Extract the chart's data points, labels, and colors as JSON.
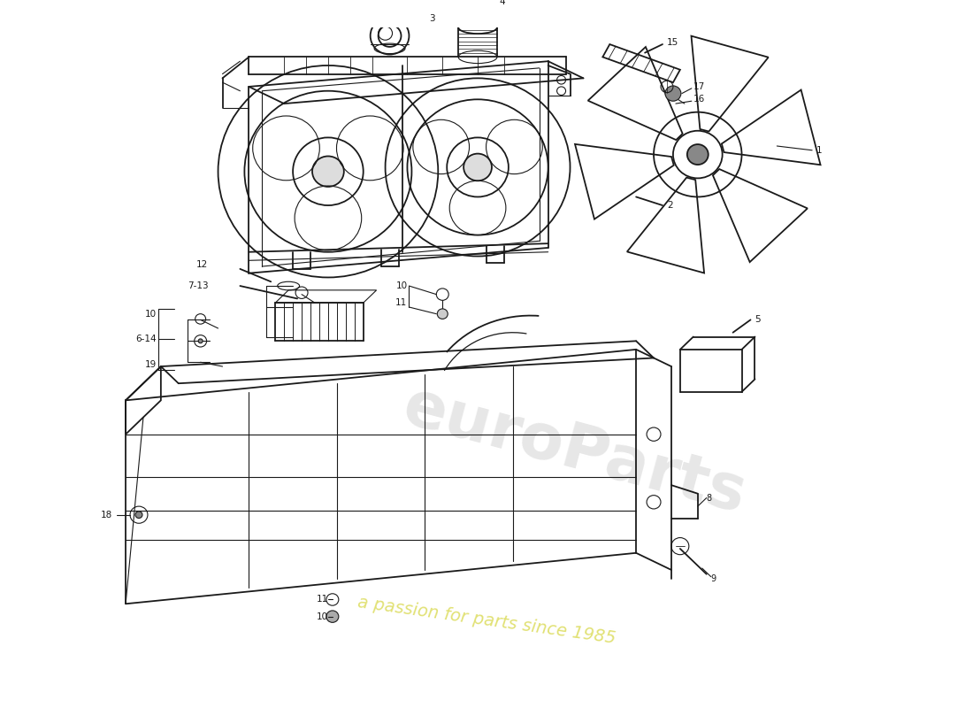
{
  "background_color": "#ffffff",
  "line_color": "#1a1a1a",
  "lw_main": 1.3,
  "lw_thin": 0.8,
  "watermark1": "euroParts",
  "watermark2": "a passion for parts since 1985",
  "wm_color1": "#b0b0b0",
  "wm_color2": "#c8c800",
  "wm_alpha1": 0.3,
  "wm_alpha2": 0.55
}
